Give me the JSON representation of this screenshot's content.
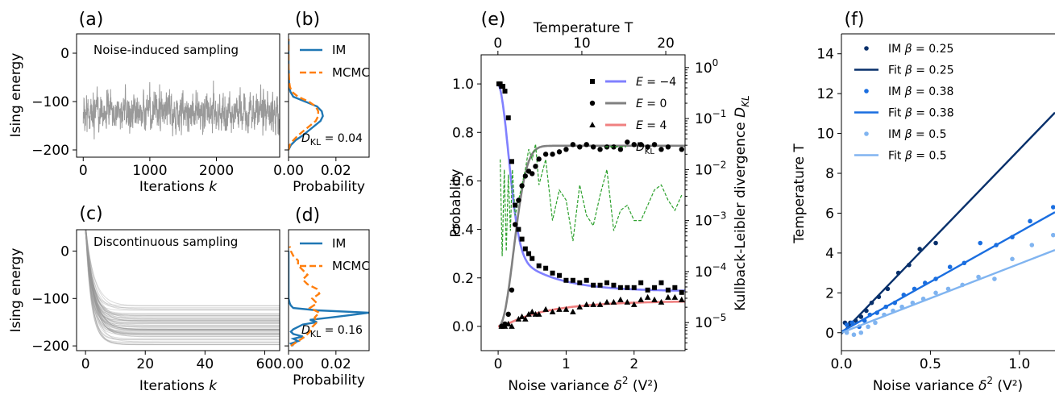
{
  "colors": {
    "im": "#1f77b4",
    "mcmc": "#ff7f0e",
    "trace": "#999999",
    "e_neg4": "#8080ff",
    "e_0": "#808080",
    "e_4": "#f08080",
    "dkl": "#2ca02c",
    "b025": "#08306b",
    "b038": "#1a6ee0",
    "b05": "#80b4f0"
  },
  "chart_data": [
    {
      "id": "a",
      "panel_label": "(a)",
      "type": "line",
      "annotation": "Noise-induced sampling",
      "xlabel": "Iterations k",
      "ylabel": "Ising energy",
      "xlim": [
        -100,
        2950
      ],
      "ylim": [
        -215,
        40
      ],
      "xticks": [
        0,
        1000,
        2000
      ],
      "xtick_labels": [
        "0",
        "1000",
        "2000"
      ],
      "yticks": [
        0,
        -100,
        -200
      ],
      "ytick_labels": [
        "0",
        "−100",
        "−200"
      ],
      "series": [
        {
          "kind": "noise_trace",
          "x_range": [
            0,
            2950
          ],
          "mean": -122,
          "spread": 38,
          "min": -195,
          "max": -30
        }
      ]
    },
    {
      "id": "b",
      "panel_label": "(b)",
      "type": "line",
      "xlabel": "Probability",
      "xlim": [
        0,
        0.034
      ],
      "ylim": [
        -215,
        40
      ],
      "xticks": [
        0,
        0.02
      ],
      "xtick_labels": [
        "0.00",
        "0.02"
      ],
      "yticks": [
        0,
        -100,
        -200
      ],
      "ytick_labels": [
        "",
        "",
        ""
      ],
      "annotation": "D_KL = 0.04",
      "legend": [
        "IM",
        "MCMC"
      ],
      "legend_position": "top-right",
      "series": [
        {
          "name": "IM",
          "orientation": "horizontal",
          "y": [
            -200,
            -190,
            -180,
            -170,
            -160,
            -150,
            -140,
            -130,
            -120,
            -110,
            -100,
            -90,
            -80,
            -70,
            -60,
            -50,
            -40,
            -30,
            -20,
            -10,
            0,
            10,
            20,
            30
          ],
          "p": [
            0.0,
            0.001,
            0.003,
            0.006,
            0.0085,
            0.011,
            0.0135,
            0.0145,
            0.014,
            0.012,
            0.007,
            0.002,
            0.0008,
            0.0003,
            0.0002,
            0.0001,
            0.0001,
            0,
            0,
            0,
            0,
            0,
            0,
            0
          ]
        },
        {
          "name": "MCMC",
          "orientation": "horizontal",
          "y": [
            -200,
            -190,
            -180,
            -170,
            -160,
            -150,
            -140,
            -130,
            -120,
            -110,
            -100,
            -90,
            -80,
            -70,
            -60,
            -50,
            -40,
            -30,
            -20,
            -10,
            0,
            10,
            20,
            30
          ],
          "p": [
            0.0,
            0.0005,
            0.002,
            0.004,
            0.0065,
            0.009,
            0.0115,
            0.0125,
            0.0125,
            0.0115,
            0.0085,
            0.004,
            0.0015,
            0.0006,
            0.0003,
            0.0002,
            0.0001,
            0,
            0,
            0,
            0,
            0,
            0,
            0
          ]
        }
      ]
    },
    {
      "id": "c",
      "panel_label": "(c)",
      "type": "line",
      "annotation": "Discontinuous sampling",
      "xlabel": "Iterations k",
      "ylabel": "Ising energy",
      "xlim": [
        -3,
        65
      ],
      "ylim": [
        -210,
        45
      ],
      "xticks": [
        0,
        20,
        40,
        60
      ],
      "xtick_labels": [
        "0",
        "20",
        "40",
        "60"
      ],
      "yticks": [
        0,
        -100,
        -200
      ],
      "ytick_labels": [
        "0",
        "−100",
        "−200"
      ],
      "series": [
        {
          "kind": "relaxation_bundle",
          "start": 40,
          "final_min": -200,
          "final_max": -115,
          "decay_k": 2.2,
          "count": 60
        }
      ]
    },
    {
      "id": "d",
      "panel_label": "(d)",
      "type": "line",
      "xlabel": "Probability",
      "xlim": [
        0,
        0.034
      ],
      "ylim": [
        -210,
        45
      ],
      "xticks": [
        0,
        0.02
      ],
      "xtick_labels": [
        "0.00",
        "0.02"
      ],
      "yticks": [
        0,
        -100,
        -200
      ],
      "ytick_labels": [
        "",
        "",
        ""
      ],
      "annotation": "D_KL = 0.16",
      "legend": [
        "IM",
        "MCMC"
      ],
      "legend_position": "top-right",
      "series": [
        {
          "name": "IM",
          "orientation": "horizontal",
          "y": [
            -200,
            -195,
            -190,
            -185,
            -180,
            -175,
            -170,
            -165,
            -160,
            -155,
            -150,
            -145,
            -140,
            -135,
            -130,
            -125,
            -120,
            -115,
            -110,
            -100,
            -80,
            -60,
            -40,
            -20,
            0
          ],
          "p": [
            0.002,
            0.001,
            0.004,
            0.002,
            0.006,
            0.002,
            0.001,
            0.002,
            0.004,
            0.006,
            0.012,
            0.009,
            0.018,
            0.026,
            0.034,
            0.012,
            0.002,
            0.001,
            0.0005,
            0,
            0,
            0,
            0,
            0,
            0
          ]
        },
        {
          "name": "MCMC",
          "orientation": "horizontal",
          "y": [
            -200,
            -190,
            -180,
            -170,
            -160,
            -150,
            -140,
            -130,
            -120,
            -110,
            -100,
            -90,
            -80,
            -70,
            -60,
            -50,
            -40,
            -30,
            -20,
            -10,
            0,
            10
          ],
          "p": [
            0.001,
            0.004,
            0.007,
            0.009,
            0.01,
            0.012,
            0.011,
            0.013,
            0.009,
            0.012,
            0.01,
            0.013,
            0.012,
            0.008,
            0.006,
            0.008,
            0.006,
            0.004,
            0.004,
            0.002,
            0.001,
            0.0005
          ]
        }
      ]
    },
    {
      "id": "e",
      "panel_label": "(e)",
      "type": "scatter",
      "xlabel": "Noise variance δ² (V²)",
      "ylabel": "Probablity",
      "top_xlabel": "Temperature T",
      "right_ylabel": "Kullback-Leibler divergence D_KL",
      "xlim": [
        -0.25,
        2.75
      ],
      "ylim": [
        -0.1,
        1.12
      ],
      "top_xlim": [
        -2.0,
        22.3
      ],
      "right_ylim_log10": [
        -5.55,
        0.25
      ],
      "xticks": [
        0,
        1,
        2
      ],
      "xtick_labels": [
        "0",
        "1",
        "2"
      ],
      "yticks": [
        0,
        0.2,
        0.4,
        0.6,
        0.8,
        1.0
      ],
      "ytick_labels": [
        "0.0",
        "0.2",
        "0.4",
        "0.6",
        "0.8",
        "1.0"
      ],
      "top_xticks": [
        0,
        10,
        20
      ],
      "top_xtick_labels": [
        "0",
        "10",
        "20"
      ],
      "right_yticks_log10": [
        0,
        -1,
        -2,
        -3,
        -4,
        -5
      ],
      "legend_position": "top-right",
      "series": [
        {
          "name": "E = −4",
          "marker": "square",
          "x": [
            0.01,
            0.03,
            0.05,
            0.07,
            0.1,
            0.15,
            0.2,
            0.25,
            0.3,
            0.35,
            0.4,
            0.45,
            0.5,
            0.6,
            0.7,
            0.8,
            0.9,
            1.0,
            1.1,
            1.2,
            1.3,
            1.4,
            1.5,
            1.6,
            1.7,
            1.8,
            1.9,
            2.0,
            2.1,
            2.2,
            2.3,
            2.4,
            2.5,
            2.6,
            2.7
          ],
          "y": [
            1.0,
            1.0,
            0.99,
            0.99,
            0.97,
            0.86,
            0.68,
            0.5,
            0.4,
            0.36,
            0.32,
            0.3,
            0.28,
            0.25,
            0.24,
            0.22,
            0.21,
            0.19,
            0.19,
            0.18,
            0.19,
            0.17,
            0.17,
            0.18,
            0.17,
            0.16,
            0.16,
            0.16,
            0.18,
            0.15,
            0.16,
            0.18,
            0.15,
            0.16,
            0.14
          ]
        },
        {
          "name": "E = 0",
          "marker": "circle",
          "x": [
            0.05,
            0.1,
            0.15,
            0.2,
            0.25,
            0.3,
            0.35,
            0.4,
            0.45,
            0.5,
            0.55,
            0.6,
            0.7,
            0.8,
            0.9,
            1.0,
            1.1,
            1.2,
            1.3,
            1.4,
            1.5,
            1.6,
            1.7,
            1.8,
            1.9,
            2.0,
            2.1,
            2.2,
            2.3,
            2.4,
            2.5,
            2.7
          ],
          "y": [
            0.0,
            0.01,
            0.05,
            0.15,
            0.42,
            0.52,
            0.58,
            0.62,
            0.64,
            0.63,
            0.66,
            0.69,
            0.71,
            0.71,
            0.72,
            0.73,
            0.75,
            0.74,
            0.75,
            0.74,
            0.73,
            0.74,
            0.74,
            0.73,
            0.76,
            0.75,
            0.75,
            0.74,
            0.75,
            0.73,
            0.74,
            0.73
          ]
        },
        {
          "name": "E = 4",
          "marker": "triangle",
          "x": [
            0.05,
            0.1,
            0.15,
            0.2,
            0.3,
            0.35,
            0.4,
            0.45,
            0.5,
            0.55,
            0.6,
            0.7,
            0.8,
            0.9,
            1.0,
            1.1,
            1.2,
            1.3,
            1.4,
            1.5,
            1.6,
            1.7,
            1.8,
            1.9,
            2.0,
            2.1,
            2.2,
            2.3,
            2.4,
            2.5,
            2.6,
            2.7
          ],
          "y": [
            0.0,
            0.0,
            0.01,
            0.0,
            0.03,
            0.04,
            0.03,
            0.05,
            0.06,
            0.05,
            0.05,
            0.07,
            0.06,
            0.07,
            0.07,
            0.06,
            0.08,
            0.09,
            0.09,
            0.09,
            0.1,
            0.1,
            0.11,
            0.1,
            0.09,
            0.11,
            0.12,
            0.11,
            0.1,
            0.12,
            0.12,
            0.11
          ]
        },
        {
          "name": "D_KL",
          "marker": "dashed-line",
          "x": [
            0.03,
            0.06,
            0.09,
            0.12,
            0.15,
            0.18,
            0.21,
            0.25,
            0.3,
            0.35,
            0.4,
            0.45,
            0.5,
            0.55,
            0.6,
            0.7,
            0.8,
            0.9,
            1.0,
            1.1,
            1.2,
            1.3,
            1.4,
            1.5,
            1.6,
            1.7,
            1.8,
            1.9,
            2.0,
            2.1,
            2.2,
            2.3,
            2.4,
            2.5,
            2.6,
            2.7
          ],
          "y_log10": [
            -1.8,
            -3.7,
            -2.0,
            -3.6,
            -2.1,
            -3.2,
            -2.0,
            -2.9,
            -2.6,
            -2.3,
            -2.0,
            -1.6,
            -1.8,
            -1.5,
            -2.3,
            -1.8,
            -3.0,
            -2.4,
            -2.6,
            -3.4,
            -2.3,
            -2.9,
            -3.1,
            -2.5,
            -2.0,
            -3.2,
            -2.8,
            -2.7,
            -3.0,
            -3.0,
            -2.7,
            -2.4,
            -2.3,
            -2.6,
            -2.8,
            -2.5
          ]
        }
      ],
      "fits": [
        {
          "name": "E = −4",
          "limit": 0.145
        },
        {
          "name": "E = 0",
          "limit": 0.745
        },
        {
          "name": "E = 4",
          "limit": 0.105
        }
      ]
    },
    {
      "id": "f",
      "panel_label": "(f)",
      "type": "scatter",
      "xlabel": "Noise variance δ² (V²)",
      "ylabel": "Temperature T",
      "xlim": [
        0,
        1.2
      ],
      "ylim": [
        -0.9,
        15
      ],
      "xticks": [
        0,
        0.5,
        1.0
      ],
      "xtick_labels": [
        "0.0",
        "0.5",
        "1.0"
      ],
      "yticks": [
        0,
        2,
        4,
        6,
        8,
        10,
        12,
        14
      ],
      "ytick_labels": [
        "0",
        "2",
        "4",
        "6",
        "8",
        "10",
        "12",
        "14"
      ],
      "legend_position": "top-left",
      "series": [
        {
          "name": "IM β = 0.25",
          "kind": "points",
          "x": [
            0.02,
            0.05,
            0.08,
            0.11,
            0.14,
            0.17,
            0.21,
            0.26,
            0.32,
            0.38,
            0.44,
            0.53
          ],
          "y": [
            0.5,
            0.5,
            0.6,
            0.8,
            1.1,
            1.5,
            1.8,
            2.2,
            3.0,
            3.4,
            4.2,
            4.5
          ]
        },
        {
          "name": "Fit β = 0.25",
          "kind": "fit",
          "x": [
            0,
            1.2
          ],
          "y": [
            -0.05,
            11.05
          ]
        },
        {
          "name": "IM β = 0.38",
          "kind": "points",
          "x": [
            0.03,
            0.06,
            0.1,
            0.13,
            0.16,
            0.2,
            0.25,
            0.3,
            0.35,
            0.41,
            0.47,
            0.53,
            0.61,
            0.69,
            0.78,
            0.87,
            0.96,
            1.06,
            1.19
          ],
          "y": [
            0.4,
            0.5,
            0.3,
            0.6,
            0.9,
            1.0,
            1.3,
            1.5,
            1.9,
            2.2,
            2.5,
            2.7,
            3.3,
            3.5,
            4.5,
            4.4,
            4.8,
            5.6,
            6.3
          ]
        },
        {
          "name": "Fit β = 0.38",
          "kind": "fit",
          "x": [
            0,
            1.2
          ],
          "y": [
            0.05,
            6.05
          ]
        },
        {
          "name": "IM β = 0.5",
          "kind": "points",
          "x": [
            0.03,
            0.07,
            0.11,
            0.15,
            0.19,
            0.24,
            0.29,
            0.34,
            0.4,
            0.46,
            0.53,
            0.6,
            0.68,
            0.77,
            0.86,
            0.96,
            1.07,
            1.19
          ],
          "y": [
            0.0,
            -0.1,
            0.0,
            0.3,
            0.5,
            0.9,
            1.1,
            1.3,
            1.5,
            1.7,
            2.0,
            2.2,
            2.4,
            2.8,
            2.7,
            3.7,
            4.4,
            4.9
          ]
        },
        {
          "name": "Fit β = 0.5",
          "kind": "fit",
          "x": [
            0,
            1.2
          ],
          "y": [
            0.0,
            4.15
          ]
        }
      ]
    }
  ]
}
